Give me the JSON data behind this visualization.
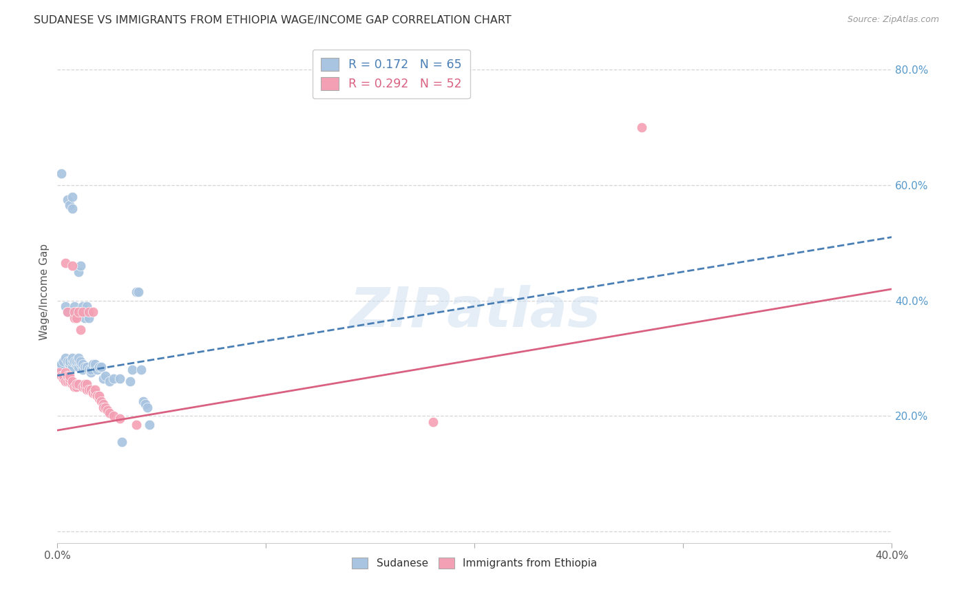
{
  "title": "SUDANESE VS IMMIGRANTS FROM ETHIOPIA WAGE/INCOME GAP CORRELATION CHART",
  "source": "Source: ZipAtlas.com",
  "ylabel": "Wage/Income Gap",
  "watermark": "ZIPatlas",
  "legend_r1": "R = 0.172   N = 65",
  "legend_r2": "R = 0.292   N = 52",
  "legend_label1": "Sudanese",
  "legend_label2": "Immigrants from Ethiopia",
  "color_blue": "#a8c4e0",
  "color_pink": "#f4a0b4",
  "trendline_blue": "#4a7fb5",
  "trendline_pink": "#d96080",
  "xlim": [
    0.0,
    0.4
  ],
  "ylim": [
    -0.02,
    0.85
  ],
  "yticks": [
    0.0,
    0.2,
    0.4,
    0.6,
    0.8
  ],
  "ytick_labels": [
    "",
    "20.0%",
    "40.0%",
    "60.0%",
    "80.0%"
  ],
  "xticks": [
    0.0,
    0.1,
    0.2,
    0.3,
    0.4
  ],
  "xtick_labels": [
    "0.0%",
    "",
    "",
    "",
    "40.0%"
  ],
  "sudanese_x": [
    0.001,
    0.002,
    0.003,
    0.004,
    0.004,
    0.005,
    0.005,
    0.005,
    0.006,
    0.006,
    0.006,
    0.007,
    0.007,
    0.007,
    0.007,
    0.007,
    0.008,
    0.008,
    0.008,
    0.008,
    0.009,
    0.009,
    0.009,
    0.009,
    0.01,
    0.01,
    0.01,
    0.01,
    0.01,
    0.011,
    0.011,
    0.011,
    0.012,
    0.012,
    0.012,
    0.013,
    0.013,
    0.014,
    0.014,
    0.015,
    0.015,
    0.016,
    0.016,
    0.017,
    0.018,
    0.018,
    0.019,
    0.02,
    0.021,
    0.022,
    0.023,
    0.025,
    0.027,
    0.03,
    0.031,
    0.035,
    0.036,
    0.038,
    0.039,
    0.04,
    0.041,
    0.042,
    0.043,
    0.044,
    0.002
  ],
  "sudanese_y": [
    0.285,
    0.29,
    0.295,
    0.3,
    0.39,
    0.295,
    0.38,
    0.575,
    0.29,
    0.295,
    0.565,
    0.285,
    0.295,
    0.3,
    0.58,
    0.56,
    0.295,
    0.375,
    0.38,
    0.39,
    0.29,
    0.295,
    0.375,
    0.38,
    0.285,
    0.295,
    0.3,
    0.38,
    0.45,
    0.29,
    0.295,
    0.46,
    0.28,
    0.29,
    0.39,
    0.285,
    0.37,
    0.285,
    0.39,
    0.28,
    0.37,
    0.275,
    0.28,
    0.29,
    0.285,
    0.29,
    0.28,
    0.285,
    0.285,
    0.265,
    0.27,
    0.26,
    0.265,
    0.265,
    0.155,
    0.26,
    0.28,
    0.415,
    0.415,
    0.28,
    0.225,
    0.22,
    0.215,
    0.185,
    0.62
  ],
  "ethiopia_x": [
    0.001,
    0.002,
    0.003,
    0.003,
    0.004,
    0.004,
    0.004,
    0.005,
    0.005,
    0.005,
    0.006,
    0.006,
    0.006,
    0.007,
    0.007,
    0.007,
    0.008,
    0.008,
    0.008,
    0.009,
    0.009,
    0.009,
    0.01,
    0.01,
    0.011,
    0.012,
    0.012,
    0.013,
    0.013,
    0.014,
    0.014,
    0.015,
    0.015,
    0.016,
    0.017,
    0.017,
    0.018,
    0.018,
    0.019,
    0.02,
    0.02,
    0.021,
    0.022,
    0.022,
    0.023,
    0.024,
    0.025,
    0.027,
    0.03,
    0.038,
    0.18,
    0.28
  ],
  "ethiopia_y": [
    0.275,
    0.27,
    0.265,
    0.27,
    0.26,
    0.275,
    0.465,
    0.26,
    0.27,
    0.38,
    0.26,
    0.265,
    0.27,
    0.255,
    0.26,
    0.46,
    0.25,
    0.37,
    0.38,
    0.25,
    0.255,
    0.37,
    0.255,
    0.38,
    0.35,
    0.25,
    0.38,
    0.25,
    0.255,
    0.245,
    0.255,
    0.245,
    0.38,
    0.245,
    0.24,
    0.38,
    0.24,
    0.245,
    0.235,
    0.23,
    0.235,
    0.225,
    0.22,
    0.215,
    0.215,
    0.21,
    0.205,
    0.2,
    0.195,
    0.185,
    0.19,
    0.7
  ],
  "blue_trend_x": [
    0.0,
    0.4
  ],
  "blue_trend_y": [
    0.27,
    0.51
  ],
  "pink_trend_x": [
    0.0,
    0.4
  ],
  "pink_trend_y": [
    0.175,
    0.42
  ]
}
